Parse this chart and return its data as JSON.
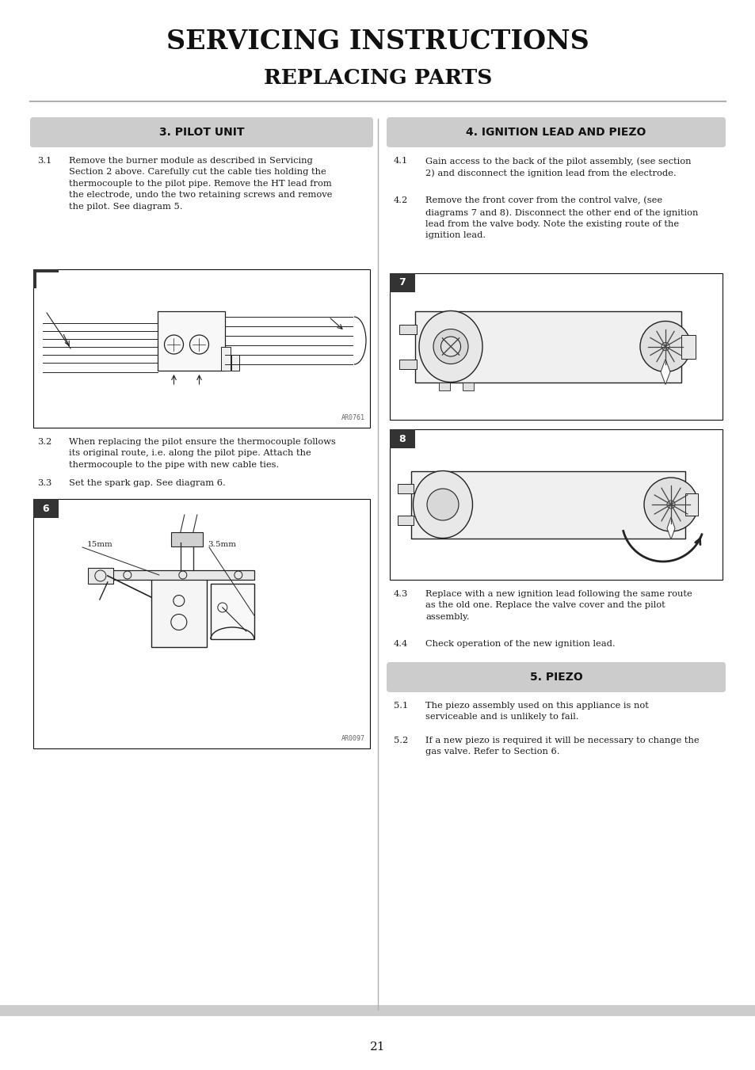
{
  "page_bg": "#ffffff",
  "title_line1": "SERVICING INSTRUCTIONS",
  "title_line2": "REPLACING PARTS",
  "title_fontsize": 24,
  "subtitle_fontsize": 19,
  "section_header_bg": "#cccccc",
  "section_header_text_color": "#000000",
  "body_text_color": "#1a1a1a",
  "body_fontsize": 8.2,
  "diagram_border_color": "#000000",
  "diagram_label_bg": "#333333",
  "diagram_label_text": "#ffffff",
  "footer_bar_color": "#cccccc",
  "page_number": "21",
  "left_section_title": "3. PILOT UNIT",
  "right_section_title": "4. IGNITION LEAD AND PIEZO",
  "bottom_section_title": "5. PIEZO",
  "body_31": "Remove the burner module as described in Servicing\nSection 2 above. Carefully cut the cable ties holding the\nthermocouple to the pilot pipe. Remove the HT lead from\nthe electrode, undo the two retaining screws and remove\nthe pilot. See diagram 5.",
  "body_32": "When replacing the pilot ensure the thermocouple follows\nits original route, i.e. along the pilot pipe. Attach the\nthermocouple to the pipe with new cable ties.",
  "body_33": "Set the spark gap. See diagram 6.",
  "body_41": "Gain access to the back of the pilot assembly, (see section\n2) and disconnect the ignition lead from the electrode.",
  "body_42": "Remove the front cover from the control valve, (see\ndiagrams 7 and 8). Disconnect the other end of the ignition\nlead from the valve body. Note the existing route of the\nignition lead.",
  "body_43": "Replace with a new ignition lead following the same route\nas the old one. Replace the valve cover and the pilot\nassembly.",
  "body_44": "Check operation of the new ignition lead.",
  "body_51": "The piezo assembly used on this appliance is not\nserviceable and is unlikely to fail.",
  "body_52": "If a new piezo is required it will be necessary to change the\ngas valve. Refer to Section 6.",
  "diag5_ref": "AR0761",
  "diag6_ref": "AR0097"
}
